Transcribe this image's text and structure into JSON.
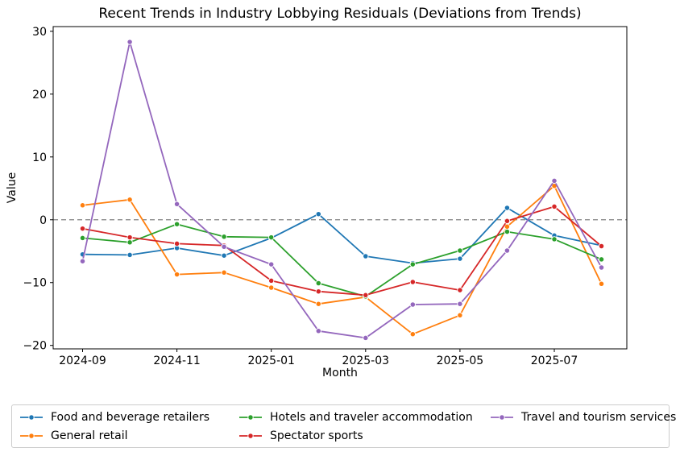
{
  "chart_data": {
    "type": "line",
    "title": "Recent Trends in Industry Lobbying Residuals (Deviations from Trends)",
    "xlabel": "Month",
    "ylabel": "Value",
    "grid": false,
    "legend_position": "bottom",
    "ylim": [
      -20.55,
      30.75
    ],
    "x": [
      "2024-09",
      "2024-10",
      "2024-11",
      "2024-12",
      "2025-01",
      "2025-02",
      "2025-03",
      "2025-04",
      "2025-05",
      "2025-06",
      "2025-07",
      "2025-08"
    ],
    "xticks": [
      {
        "index": 0,
        "label": "2024-09"
      },
      {
        "index": 2,
        "label": "2024-11"
      },
      {
        "index": 4,
        "label": "2025-01"
      },
      {
        "index": 6,
        "label": "2025-03"
      },
      {
        "index": 8,
        "label": "2025-05"
      },
      {
        "index": 10,
        "label": "2025-07"
      }
    ],
    "yticks": [
      {
        "value": 30,
        "label": "30"
      },
      {
        "value": 20,
        "label": "20"
      },
      {
        "value": 10,
        "label": "10"
      },
      {
        "value": 0,
        "label": "0"
      },
      {
        "value": -10,
        "label": "−10"
      },
      {
        "value": -20,
        "label": "−20"
      }
    ],
    "zero_line": {
      "y": 0,
      "style": "dashed",
      "color": "#808080"
    },
    "series": [
      {
        "name": "Food and beverage retailers",
        "color": "#1f77b4",
        "values": [
          -5.5,
          -5.6,
          -4.5,
          -5.7,
          -2.9,
          0.9,
          -5.8,
          -6.9,
          -6.2,
          1.9,
          -2.5,
          -4.1
        ]
      },
      {
        "name": "General retail",
        "color": "#ff7f0e",
        "values": [
          2.3,
          3.2,
          -8.7,
          -8.4,
          -10.8,
          -13.4,
          -12.3,
          -18.2,
          -15.2,
          -1.1,
          5.4,
          -10.2
        ]
      },
      {
        "name": "Hotels and traveler accommodation",
        "color": "#2ca02c",
        "values": [
          -2.9,
          -3.6,
          -0.7,
          -2.7,
          -2.8,
          -10.1,
          -12.2,
          -7.1,
          -4.9,
          -1.9,
          -3.1,
          -6.3
        ]
      },
      {
        "name": "Spectator sports",
        "color": "#d62728",
        "values": [
          -1.4,
          -2.8,
          -3.8,
          -4.1,
          -9.7,
          -11.4,
          -12.0,
          -9.9,
          -11.2,
          -0.2,
          2.1,
          -4.2
        ]
      },
      {
        "name": "Travel and tourism services",
        "color": "#9467bd",
        "values": [
          -6.6,
          28.3,
          2.5,
          -4.3,
          -7.1,
          -17.7,
          -18.8,
          -13.5,
          -13.4,
          -4.9,
          6.2,
          -7.6
        ]
      }
    ]
  }
}
